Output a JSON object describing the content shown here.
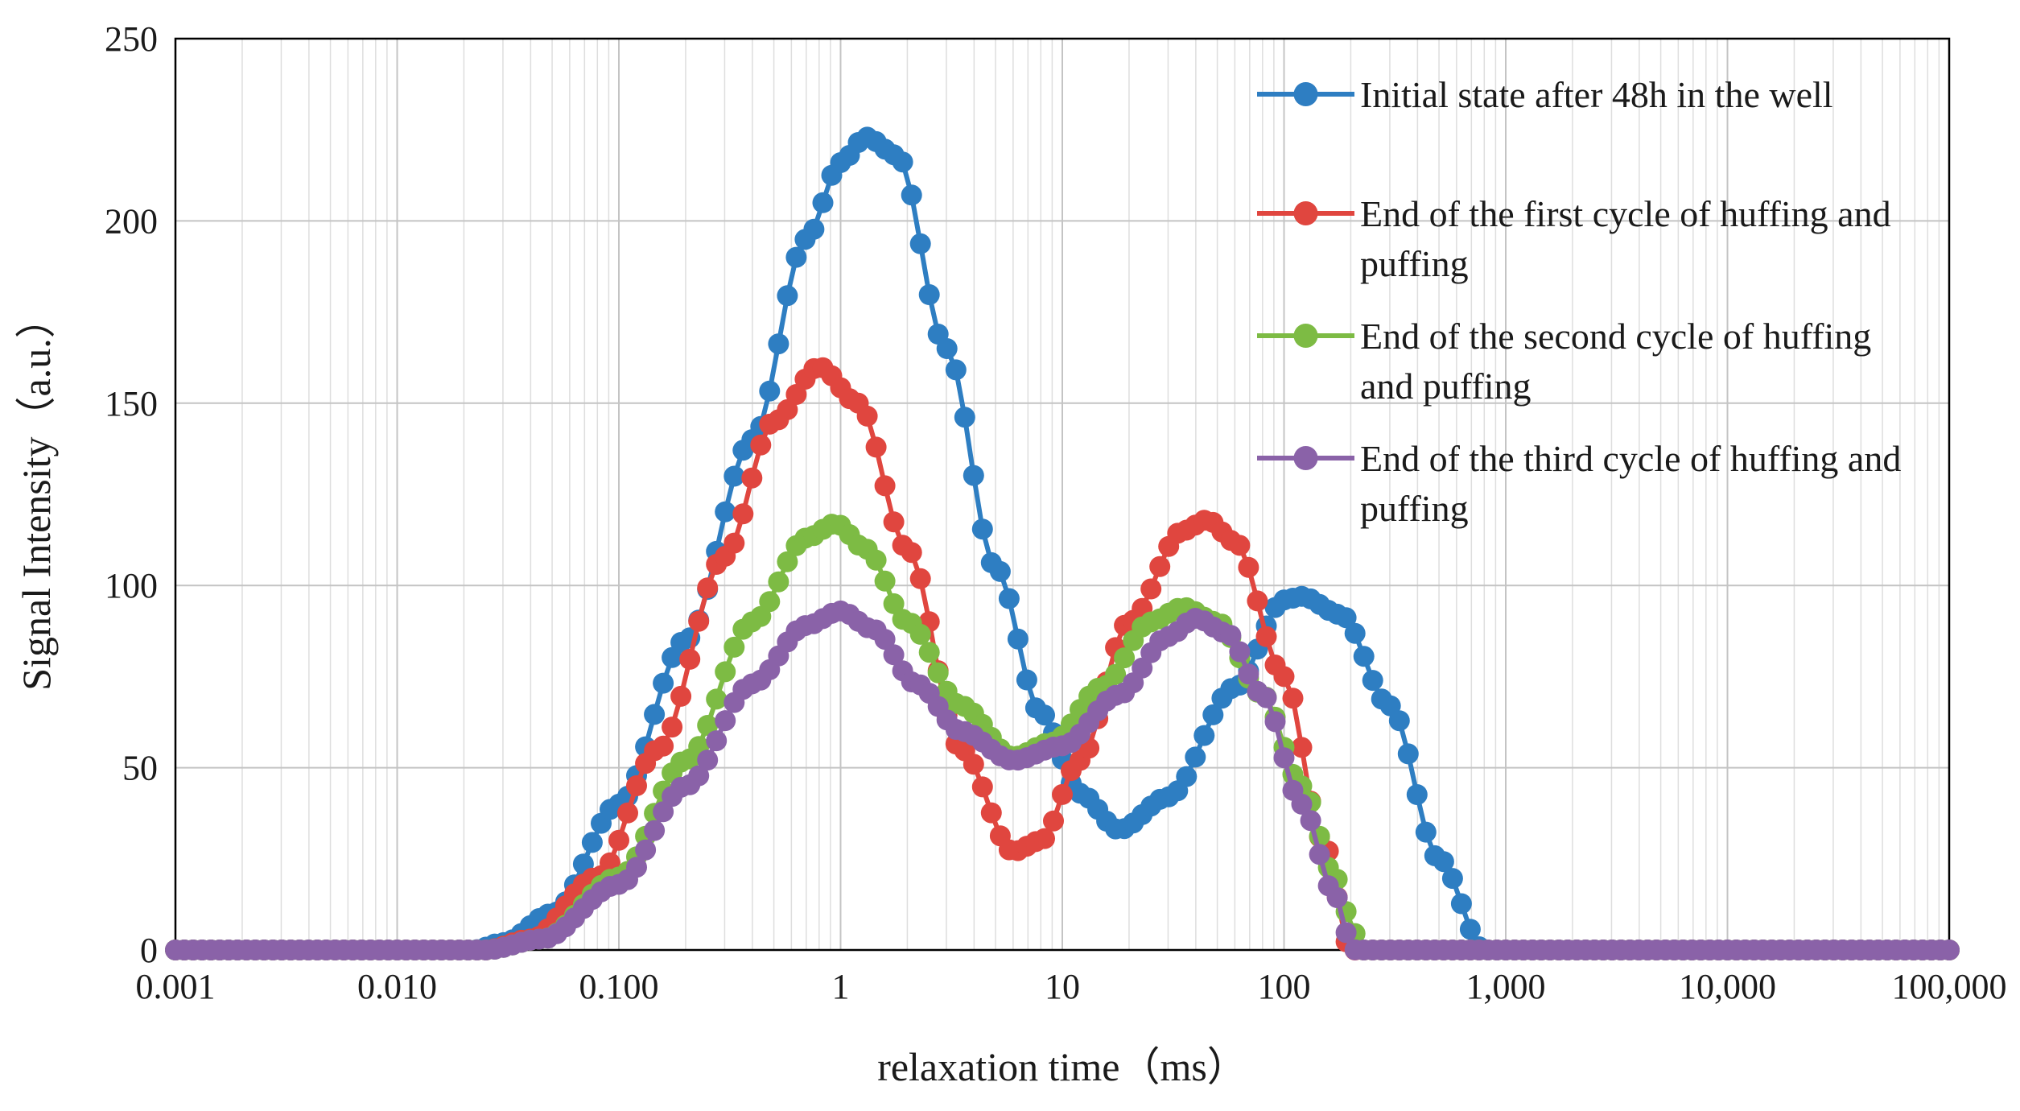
{
  "chart_data": {
    "type": "line",
    "title": "",
    "xlabel": "relaxation time（ms）",
    "ylabel": "Signal Intensity（a.u.）",
    "x_scale": "log",
    "xlim": [
      0.001,
      100000
    ],
    "ylim": [
      0,
      250
    ],
    "x_ticks": [
      {
        "value": 0.001,
        "label": "0.001"
      },
      {
        "value": 0.01,
        "label": "0.010"
      },
      {
        "value": 0.1,
        "label": "0.100"
      },
      {
        "value": 1,
        "label": "1"
      },
      {
        "value": 10,
        "label": "10"
      },
      {
        "value": 100,
        "label": "100"
      },
      {
        "value": 1000,
        "label": "1,000"
      },
      {
        "value": 10000,
        "label": "10,000"
      },
      {
        "value": 100000,
        "label": "100,000"
      }
    ],
    "y_ticks": [
      {
        "value": 0,
        "label": "0"
      },
      {
        "value": 50,
        "label": "50"
      },
      {
        "value": 100,
        "label": "100"
      },
      {
        "value": 150,
        "label": "150"
      },
      {
        "value": 200,
        "label": "200"
      },
      {
        "value": 250,
        "label": "250"
      }
    ],
    "grid": true,
    "legend_position": "top-right",
    "points_per_decade": 25,
    "series": [
      {
        "name": "Initial state after 48h in the well",
        "color": "#2E7EC2",
        "points": [
          [
            0.001,
            0
          ],
          [
            0.022,
            0
          ],
          [
            0.03,
            2
          ],
          [
            0.05,
            10
          ],
          [
            0.1,
            40
          ],
          [
            0.2,
            85
          ],
          [
            0.4,
            140
          ],
          [
            0.7,
            195
          ],
          [
            1.0,
            216
          ],
          [
            1.3,
            223
          ],
          [
            1.8,
            218
          ],
          [
            3.0,
            165
          ],
          [
            5.0,
            105
          ],
          [
            8.0,
            65
          ],
          [
            12.0,
            43
          ],
          [
            18.0,
            33
          ],
          [
            30.0,
            42
          ],
          [
            60.0,
            72
          ],
          [
            100.0,
            96
          ],
          [
            120.0,
            97
          ],
          [
            180.0,
            92
          ],
          [
            300.0,
            67
          ],
          [
            500.0,
            25
          ],
          [
            800.0,
            0
          ],
          [
            100000,
            0
          ]
        ]
      },
      {
        "name": "End of the first cycle of  huffing and puffing",
        "color": "#E0463F",
        "points": [
          [
            0.001,
            0
          ],
          [
            0.025,
            0
          ],
          [
            0.04,
            3
          ],
          [
            0.08,
            20
          ],
          [
            0.15,
            55
          ],
          [
            0.3,
            108
          ],
          [
            0.5,
            145
          ],
          [
            0.8,
            160
          ],
          [
            1.2,
            150
          ],
          [
            2.0,
            110
          ],
          [
            3.5,
            55
          ],
          [
            6.0,
            27
          ],
          [
            8.0,
            30
          ],
          [
            12.0,
            52
          ],
          [
            20.0,
            90
          ],
          [
            35.0,
            115
          ],
          [
            45.0,
            118
          ],
          [
            60.0,
            112
          ],
          [
            100.0,
            75
          ],
          [
            150.0,
            30
          ],
          [
            200.0,
            0
          ],
          [
            100000,
            0
          ]
        ]
      },
      {
        "name": "End of the second cycle of huffing and puffing",
        "color": "#7DBB44",
        "points": [
          [
            0.001,
            0
          ],
          [
            0.025,
            0
          ],
          [
            0.045,
            3
          ],
          [
            0.1,
            20
          ],
          [
            0.2,
            52
          ],
          [
            0.4,
            90
          ],
          [
            0.7,
            113
          ],
          [
            0.95,
            117
          ],
          [
            1.3,
            110
          ],
          [
            2.0,
            90
          ],
          [
            3.5,
            67
          ],
          [
            6.0,
            53
          ],
          [
            9.0,
            57
          ],
          [
            15.0,
            72
          ],
          [
            25.0,
            90
          ],
          [
            35.0,
            94
          ],
          [
            50.0,
            90
          ],
          [
            80.0,
            70
          ],
          [
            120.0,
            45
          ],
          [
            170.0,
            20
          ],
          [
            200.0,
            8
          ],
          [
            220.0,
            0
          ],
          [
            100000,
            0
          ]
        ]
      },
      {
        "name": "End of the third cycle of  huffing and puffing",
        "color": "#8A62A8",
        "points": [
          [
            0.001,
            0
          ],
          [
            0.025,
            0
          ],
          [
            0.045,
            3
          ],
          [
            0.1,
            18
          ],
          [
            0.2,
            45
          ],
          [
            0.4,
            73
          ],
          [
            0.7,
            89
          ],
          [
            1.0,
            93
          ],
          [
            1.4,
            88
          ],
          [
            2.2,
            73
          ],
          [
            3.5,
            60
          ],
          [
            6.0,
            52
          ],
          [
            10.0,
            56
          ],
          [
            18.0,
            70
          ],
          [
            30.0,
            86
          ],
          [
            40.0,
            91
          ],
          [
            55.0,
            87
          ],
          [
            80.0,
            70
          ],
          [
            120.0,
            40
          ],
          [
            170.0,
            15
          ],
          [
            200.0,
            2
          ],
          [
            210.0,
            0
          ],
          [
            100000,
            0
          ]
        ]
      }
    ]
  }
}
